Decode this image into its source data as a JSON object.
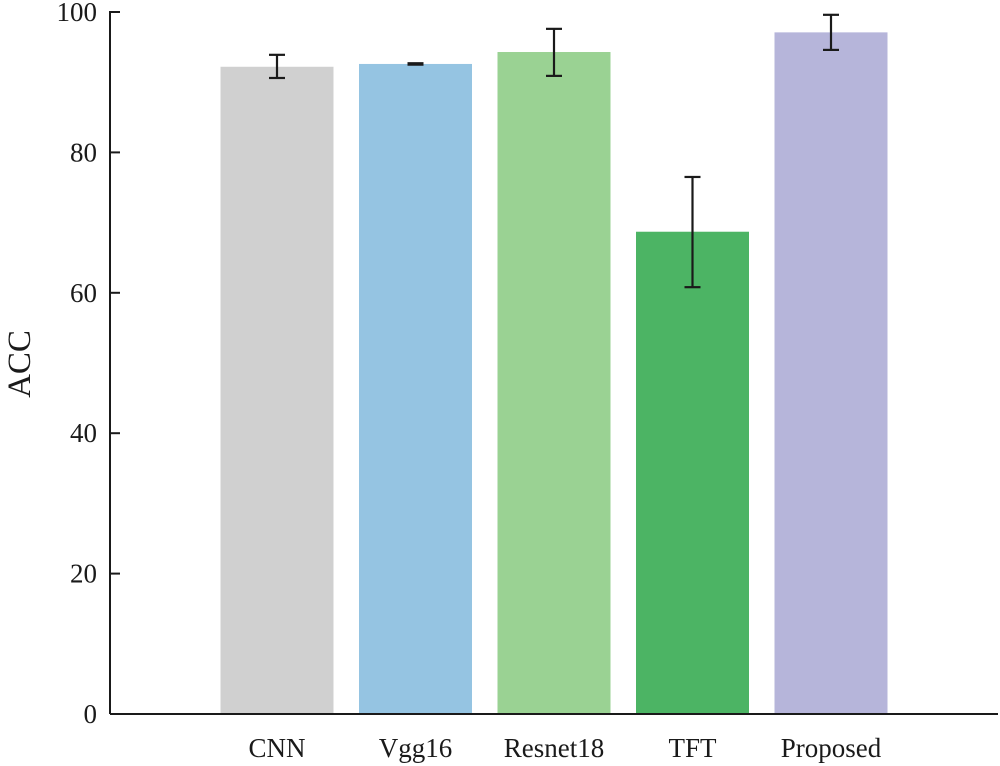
{
  "chart_data": {
    "type": "bar",
    "title": "",
    "xlabel": "",
    "ylabel": "ACC",
    "ylim": [
      0,
      100
    ],
    "yticks": [
      0,
      20,
      40,
      60,
      80,
      100
    ],
    "grid": false,
    "categories": [
      "CNN",
      "Vgg16",
      "Resnet18",
      "TFT",
      "Proposed"
    ],
    "values": [
      92.2,
      92.6,
      94.3,
      68.7,
      97.1
    ],
    "errors_low": [
      90.6,
      92.5,
      90.9,
      60.8,
      94.6
    ],
    "errors_high": [
      93.9,
      92.7,
      97.6,
      76.5,
      99.6
    ],
    "colors": [
      "#d0d0d0",
      "#95c4e2",
      "#9ad293",
      "#4cb464",
      "#b6b5da"
    ]
  }
}
